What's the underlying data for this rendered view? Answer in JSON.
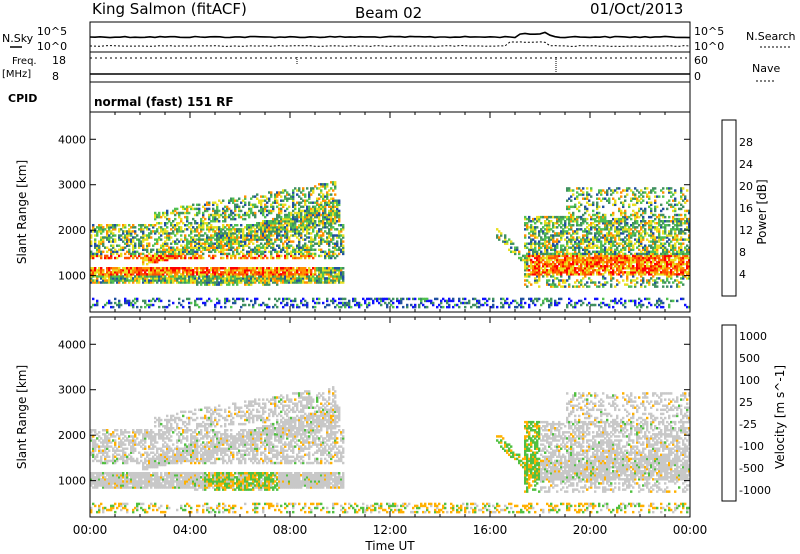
{
  "header": {
    "station": "King Salmon (fitACF)",
    "beam": "Beam 02",
    "date": "01/Oct/2013"
  },
  "strips": {
    "sky_label": "N.Sky",
    "search_label": "N.Search",
    "tick_hi": "10^5",
    "tick_lo": "10^0",
    "freq_label_1": "Freq.",
    "freq_label_2": "[MHz]",
    "freq_ticks": [
      "18",
      "8"
    ],
    "nave_label": "Nave",
    "nave_ticks": [
      "60",
      "0"
    ],
    "cpid_label": "CPID",
    "cpid_value": "normal (fast) 151 RF"
  },
  "chart_data": [
    {
      "type": "heatmap",
      "name": "power",
      "ylabel": "Slant Range [km]",
      "ylim": [
        200,
        4600
      ],
      "yticks": [
        "1000",
        "2000",
        "3000",
        "4000"
      ],
      "colorbar_label": "Power [dB]",
      "colorbar_ticks": [
        "4",
        "8",
        "12",
        "16",
        "20",
        "24",
        "28"
      ],
      "colors": [
        "#1010ff",
        "#2050a0",
        "#409060",
        "#50c050",
        "#e8e020",
        "#ff9000",
        "#ff5000",
        "#ff0000"
      ],
      "regions": [
        {
          "t": [
            0.0,
            10.0
          ],
          "r": [
            900,
            2100
          ],
          "level": "high"
        },
        {
          "t": [
            2.5,
            9.5
          ],
          "r": [
            1200,
            2800
          ],
          "level": "mid"
        },
        {
          "t": [
            17.0,
            24.0
          ],
          "r": [
            800,
            2400
          ],
          "level": "high"
        },
        {
          "t": [
            0.0,
            24.0
          ],
          "r": [
            250,
            500
          ],
          "level": "low"
        }
      ]
    },
    {
      "type": "heatmap",
      "name": "velocity",
      "ylabel": "Slant Range [km]",
      "ylim": [
        200,
        4600
      ],
      "yticks": [
        "1000",
        "2000",
        "3000",
        "4000"
      ],
      "colorbar_label": "Velocity [m s^-1]",
      "colorbar_ticks": [
        "1000",
        "500",
        "100",
        "25",
        "-25",
        "-100",
        "-500",
        "-1000"
      ],
      "colors": [
        "#1010c0",
        "#2060c0",
        "#208060",
        "#50c040",
        "#c8c8c8",
        "#ffb000",
        "#ff6000",
        "#ff0000"
      ],
      "xticks": [
        "00:00",
        "04:00",
        "08:00",
        "12:00",
        "16:00",
        "20:00",
        "00:00"
      ],
      "xlabel": "Time UT",
      "xlim": [
        0,
        24
      ]
    }
  ]
}
